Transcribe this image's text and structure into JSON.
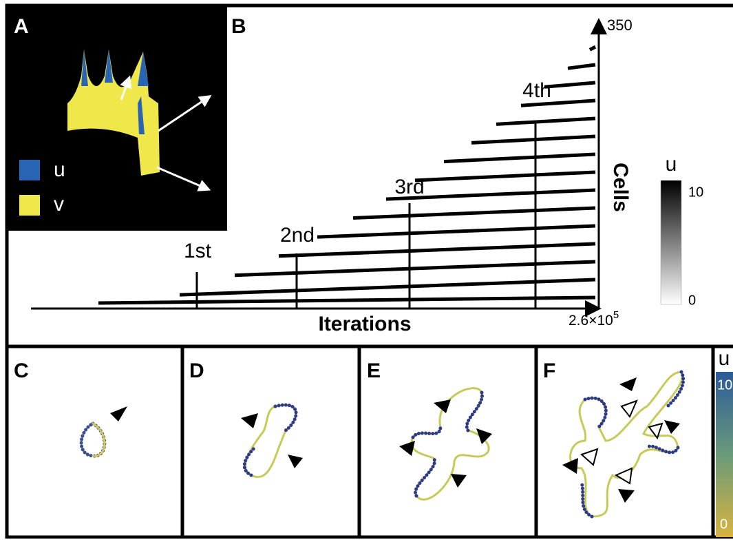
{
  "panel_a": {
    "label": "A",
    "legend": [
      "u",
      "v"
    ]
  },
  "panel_b": {
    "label": "B",
    "y_axis_label": "Cells",
    "y_axis_max": "350",
    "x_axis_label": "Iterations",
    "x_axis_max": {
      "base": "2.6×10",
      "exponent": "5"
    },
    "events": [
      "1st",
      "2nd",
      "3rd",
      "4th"
    ],
    "colorbar": {
      "title": "u",
      "max": "10",
      "min": "0"
    }
  },
  "panels_cdef": {
    "labels": [
      "C",
      "D",
      "E",
      "F"
    ],
    "colorbar": {
      "title": "u",
      "max": "10",
      "min": "0"
    }
  }
}
